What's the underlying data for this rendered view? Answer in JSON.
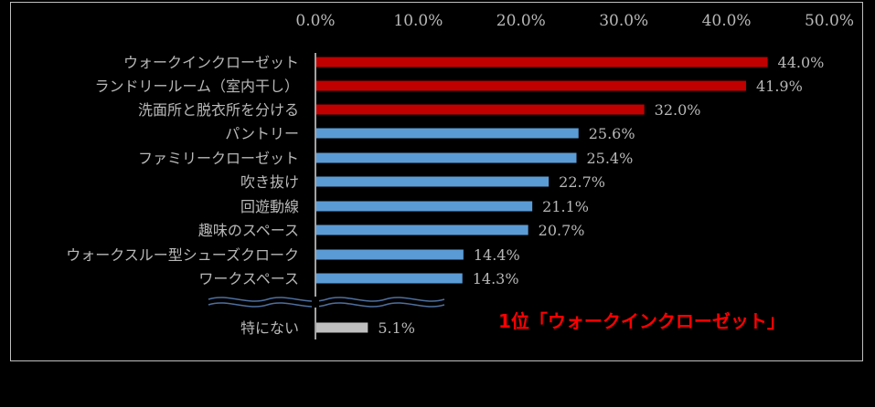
{
  "chart_data": {
    "type": "bar",
    "orientation": "horizontal",
    "categories": [
      "ウォークインクローゼット",
      "ランドリールーム（室内干し）",
      "洗面所と脱衣所を分ける",
      "パントリー",
      "ファミリークローゼット",
      "吹き抜け",
      "回遊動線",
      "趣味のスペース",
      "ウォークスルー型シューズクローク",
      "ワークスペース",
      "特にない"
    ],
    "values": [
      44.0,
      41.9,
      32.0,
      25.6,
      25.4,
      22.7,
      21.1,
      20.7,
      14.4,
      14.3,
      5.1
    ],
    "value_labels": [
      "44.0%",
      "41.9%",
      "32.0%",
      "25.6%",
      "25.4%",
      "22.7%",
      "21.1%",
      "20.7%",
      "14.4%",
      "14.3%",
      "5.1%"
    ],
    "bar_colors": [
      "#c00000",
      "#c00000",
      "#c00000",
      "#5b9bd5",
      "#5b9bd5",
      "#5b9bd5",
      "#5b9bd5",
      "#5b9bd5",
      "#5b9bd5",
      "#5b9bd5",
      "#bfbfbf"
    ],
    "xlim": [
      0,
      50
    ],
    "x_ticks": [
      0,
      10,
      20,
      30,
      40,
      50
    ],
    "x_tick_labels": [
      "0.0%",
      "10.0%",
      "20.0%",
      "30.0%",
      "40.0%",
      "50.0%"
    ],
    "axis_position": "top",
    "grid": false,
    "legend": false,
    "axis_break_before": "特にない",
    "annotation": "1位「ウォークインクローゼット」"
  },
  "colors": {
    "background": "#000000",
    "text": "#b8b8b8",
    "axis": "#d9d9d9",
    "break_line": "#4f6f9f",
    "annotation": "#ff0000"
  }
}
